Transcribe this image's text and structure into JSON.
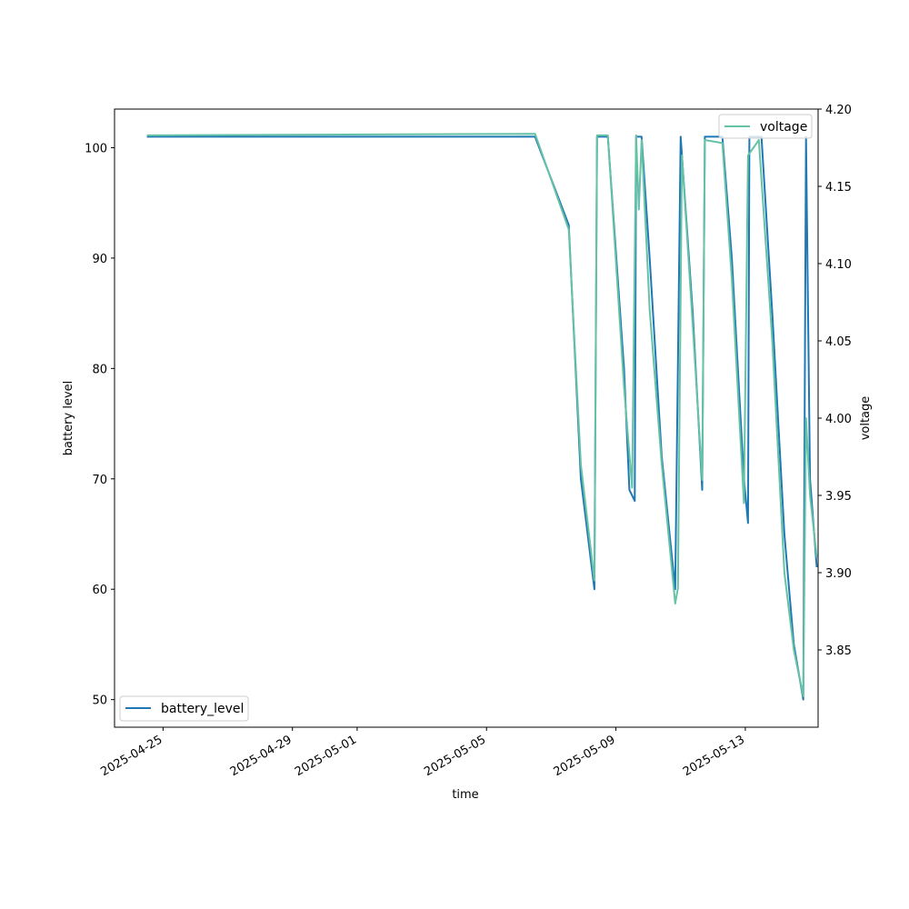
{
  "chart_data": {
    "type": "line",
    "xlabel": "time",
    "ylabel_left": "battery level",
    "ylabel_right": "voltage",
    "x_ticks": [
      "2025-04-25",
      "2025-04-29",
      "2025-05-01",
      "2025-05-05",
      "2025-05-09",
      "2025-05-13"
    ],
    "xlim": [
      "2025-04-23T12:00",
      "2025-05-15T06:00"
    ],
    "left_axis": {
      "ylim": [
        47.5,
        103.5
      ],
      "ticks": [
        "50",
        "60",
        "70",
        "80",
        "90",
        "100"
      ]
    },
    "right_axis": {
      "ylim": [
        3.8,
        4.2
      ],
      "ticks": [
        "3.85",
        "3.90",
        "3.95",
        "4.00",
        "4.05",
        "4.10",
        "4.15",
        "4.20"
      ]
    },
    "grid": false,
    "series": [
      {
        "name": "battery_level",
        "axis": "left",
        "color": "#1f77b4",
        "legend_position": "lower-left",
        "points": [
          [
            "2025-04-24T12:00",
            101
          ],
          [
            "2025-05-06T12:00",
            101
          ],
          [
            "2025-05-07T13:00",
            93
          ],
          [
            "2025-05-07T22:00",
            70
          ],
          [
            "2025-05-08T08:00",
            60
          ],
          [
            "2025-05-08T10:00",
            101
          ],
          [
            "2025-05-08T18:00",
            101
          ],
          [
            "2025-05-09T06:00",
            80
          ],
          [
            "2025-05-09T10:00",
            69
          ],
          [
            "2025-05-09T14:00",
            68
          ],
          [
            "2025-05-09T15:00",
            101
          ],
          [
            "2025-05-09T19:00",
            101
          ],
          [
            "2025-05-10T01:00",
            90
          ],
          [
            "2025-05-10T10:00",
            72
          ],
          [
            "2025-05-10T20:00",
            60
          ],
          [
            "2025-05-11T00:00",
            101
          ],
          [
            "2025-05-11T09:00",
            85
          ],
          [
            "2025-05-11T16:00",
            69
          ],
          [
            "2025-05-11T18:00",
            101
          ],
          [
            "2025-05-12T07:00",
            101
          ],
          [
            "2025-05-12T14:00",
            90
          ],
          [
            "2025-05-12T23:00",
            70
          ],
          [
            "2025-05-13T02:00",
            66
          ],
          [
            "2025-05-13T03:00",
            101
          ],
          [
            "2025-05-13T12:00",
            101
          ],
          [
            "2025-05-13T20:00",
            85
          ],
          [
            "2025-05-14T05:00",
            65
          ],
          [
            "2025-05-14T12:00",
            55
          ],
          [
            "2025-05-14T19:00",
            50
          ],
          [
            "2025-05-14T21:00",
            101
          ],
          [
            "2025-05-15T00:00",
            70
          ],
          [
            "2025-05-15T05:00",
            62
          ]
        ]
      },
      {
        "name": "voltage",
        "axis": "right",
        "color": "#66c2a5",
        "legend_position": "upper-right",
        "points": [
          [
            "2025-04-24T12:00",
            4.183
          ],
          [
            "2025-05-06T12:00",
            4.184
          ],
          [
            "2025-05-07T13:00",
            4.122
          ],
          [
            "2025-05-07T22:00",
            3.97
          ],
          [
            "2025-05-08T08:00",
            3.895
          ],
          [
            "2025-05-08T10:00",
            4.183
          ],
          [
            "2025-05-08T18:00",
            4.183
          ],
          [
            "2025-05-09T06:00",
            4.02
          ],
          [
            "2025-05-09T12:00",
            3.955
          ],
          [
            "2025-05-09T15:00",
            4.183
          ],
          [
            "2025-05-09T17:00",
            4.135
          ],
          [
            "2025-05-09T19:00",
            4.18
          ],
          [
            "2025-05-10T01:00",
            4.07
          ],
          [
            "2025-05-10T10:00",
            3.97
          ],
          [
            "2025-05-10T20:00",
            3.88
          ],
          [
            "2025-05-10T22:00",
            3.89
          ],
          [
            "2025-05-11T01:00",
            4.17
          ],
          [
            "2025-05-11T09:00",
            4.06
          ],
          [
            "2025-05-11T16:00",
            3.96
          ],
          [
            "2025-05-11T18:00",
            4.18
          ],
          [
            "2025-05-12T07:00",
            4.178
          ],
          [
            "2025-05-12T14:00",
            4.09
          ],
          [
            "2025-05-12T23:00",
            3.945
          ],
          [
            "2025-05-13T02:00",
            4.17
          ],
          [
            "2025-05-13T10:00",
            4.18
          ],
          [
            "2025-05-13T20:00",
            4.05
          ],
          [
            "2025-05-14T05:00",
            3.9
          ],
          [
            "2025-05-14T12:00",
            3.85
          ],
          [
            "2025-05-14T19:00",
            3.82
          ],
          [
            "2025-05-14T21:00",
            4.0
          ],
          [
            "2025-05-15T00:00",
            3.95
          ],
          [
            "2025-05-15T05:00",
            3.91
          ]
        ]
      }
    ]
  }
}
